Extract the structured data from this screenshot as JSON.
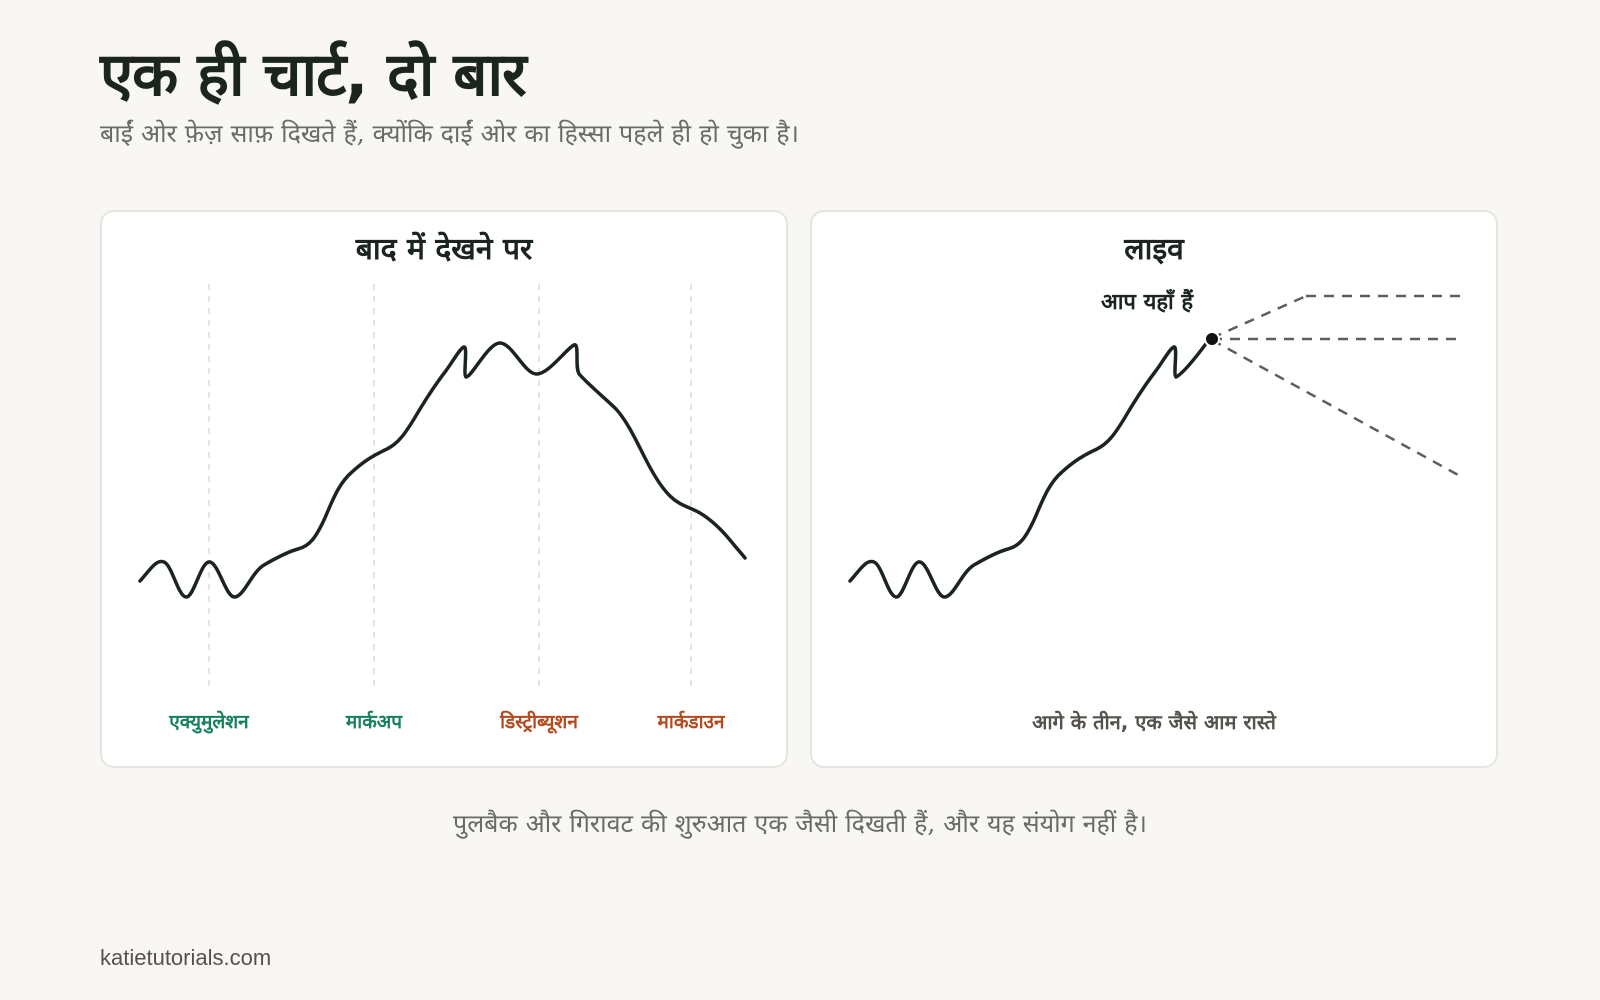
{
  "header": {
    "title": "एक ही चार्ट, दो बार",
    "subtitle": "बाईं ओर फ़ेज़ साफ़ दिखते हैं, क्योंकि दाईं ओर का हिस्सा पहले ही हो चुका है।"
  },
  "left_panel": {
    "title": "बाद में देखने पर",
    "phases": [
      {
        "label": "एक्युमुलेशन",
        "color": "#17805f"
      },
      {
        "label": "मार्कअप",
        "color": "#17805f"
      },
      {
        "label": "डिस्ट्रीब्यूशन",
        "color": "#b54a1e"
      },
      {
        "label": "मार्कडाउन",
        "color": "#b54a1e"
      }
    ]
  },
  "right_panel": {
    "title": "लाइव",
    "marker_label": "आप यहाँ हैं",
    "paths_caption": "आगे के तीन, एक जैसे आम रास्ते"
  },
  "footer": {
    "note": "पुलबैक और गिरावट की शुरुआत एक जैसी दिखती हैं, और यह संयोग नहीं है।",
    "site": "katietutorials.com"
  },
  "colors": {
    "background": "#f8f7f3",
    "line": "#1b241f",
    "accent_green": "#17805f",
    "accent_red": "#b54a1e",
    "projection": "#5f5f5a"
  }
}
